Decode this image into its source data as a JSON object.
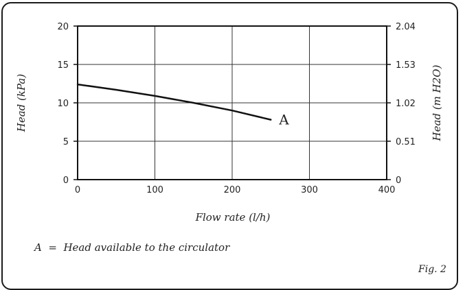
{
  "chart_data": {
    "type": "line",
    "x": [
      0,
      50,
      100,
      150,
      200,
      250
    ],
    "series": [
      {
        "name": "A",
        "values": [
          12.4,
          11.7,
          10.9,
          10.0,
          9.0,
          7.8
        ]
      }
    ],
    "xlabel": "Flow rate (l/h)",
    "ylabel": "Head (kPa)",
    "y2label": "Head (m H2O)",
    "xlim": [
      0,
      400
    ],
    "ylim": [
      0,
      20
    ],
    "xticks": [
      0,
      100,
      200,
      300,
      400
    ],
    "yticks": [
      0,
      5,
      10,
      15,
      20
    ],
    "y2ticks": [
      "0",
      "0.51",
      "1.02",
      "1.53",
      "2.04"
    ],
    "grid": true,
    "line_color": "#111111"
  },
  "legend_text": "A  =  Head available to the circulator",
  "fig_label": "Fig. 2"
}
